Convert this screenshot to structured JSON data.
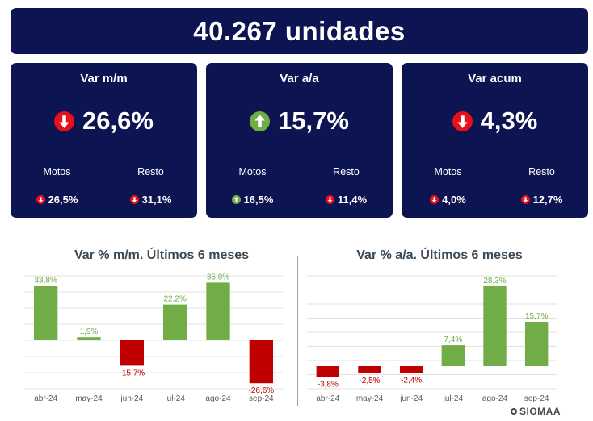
{
  "headline": "40.267 unidades",
  "cards": [
    {
      "title": "Var m/m",
      "direction": "down",
      "value": "26,6%",
      "sub": [
        {
          "label": "Motos",
          "direction": "down",
          "value": "26,5%"
        },
        {
          "label": "Resto",
          "direction": "down",
          "value": "31,1%"
        }
      ]
    },
    {
      "title": "Var a/a",
      "direction": "up",
      "value": "15,7%",
      "sub": [
        {
          "label": "Motos",
          "direction": "up",
          "value": "16,5%"
        },
        {
          "label": "Resto",
          "direction": "down",
          "value": "11,4%"
        }
      ]
    },
    {
      "title": "Var acum",
      "direction": "down",
      "value": "4,3%",
      "sub": [
        {
          "label": "Motos",
          "direction": "down",
          "value": "4,0%"
        },
        {
          "label": "Resto",
          "direction": "down",
          "value": "12,7%"
        }
      ]
    }
  ],
  "colors": {
    "navy": "#0d1452",
    "positive": "#70ad47",
    "negative": "#c00000",
    "up_arrow": "#70ad47",
    "down_arrow": "#e8101a"
  },
  "chart_data": [
    {
      "type": "bar",
      "title": "Var % m/m. Últimos 6 meses",
      "categories": [
        "abr-24",
        "may-24",
        "jun-24",
        "jul-24",
        "ago-24",
        "sep-24"
      ],
      "values": [
        33.8,
        1.9,
        -15.7,
        22.2,
        35.8,
        -26.6
      ],
      "labels": [
        "33,8%",
        "1,9%",
        "-15,7%",
        "22,2%",
        "35,8%",
        "-26,6%"
      ],
      "ylim": [
        -30,
        40
      ],
      "grid": true
    },
    {
      "type": "bar",
      "title": "Var % a/a. Últimos 6 meses",
      "categories": [
        "abr-24",
        "may-24",
        "jun-24",
        "jul-24",
        "ago-24",
        "sep-24"
      ],
      "values": [
        -3.8,
        -2.5,
        -2.4,
        7.4,
        28.3,
        15.7
      ],
      "labels": [
        "-3,8%",
        "-2,5%",
        "-2,4%",
        "7,4%",
        "28,3%",
        "15,7%"
      ],
      "ylim": [
        -8,
        32
      ],
      "grid": true
    }
  ],
  "brand": "SIOMAA"
}
